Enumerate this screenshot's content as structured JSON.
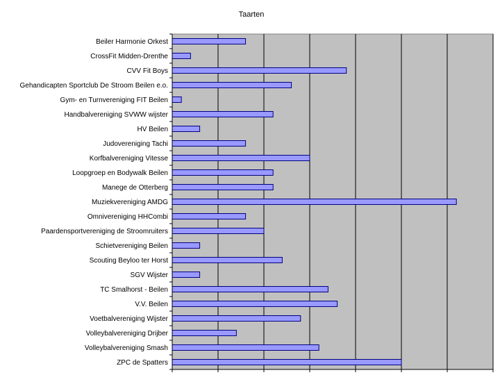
{
  "chart_data": {
    "type": "bar",
    "orientation": "horizontal",
    "title": "Taarten",
    "xlabel": "",
    "ylabel": "",
    "xlim": [
      0,
      35
    ],
    "x_tick_step": 5,
    "x_tick_labels_visible": false,
    "grid": "vertical",
    "legend": "none",
    "categories": [
      "Beiler Harmonie Orkest",
      "CrossFit Midden-Drenthe",
      "CVV Fit Boys",
      "Gehandicapten Sportclub De Stroom Beilen e.o.",
      "Gym- en Turnvereniging FIT Beilen",
      "Handbalvereniging SVWW wijster",
      "HV Beilen",
      "Judovereniging Tachi",
      "Korfbalvereniging Vitesse",
      "Loopgroep en Bodywalk Beilen",
      "Manege de Otterberg",
      "Muziekvereniging AMDG",
      "Omnivereniging HHCombi",
      "Paardensportvereniging de Stroomruiters",
      "Schietvereniging Beilen",
      "Scouting Beyloo ter Horst",
      "SGV Wijster",
      "TC Smalhorst - Beilen",
      "V.V. Beilen",
      "Voetbalvereniging Wijster",
      "Volleybalvereniging Drijber",
      "Volleybalvereniging Smash",
      "ZPC de Spatters"
    ],
    "values": [
      8,
      2,
      19,
      13,
      1,
      11,
      3,
      8,
      15,
      11,
      11,
      31,
      8,
      10,
      3,
      12,
      3,
      17,
      18,
      14,
      7,
      16,
      25
    ],
    "colors": {
      "bar_fill": "#9999ff",
      "bar_stroke": "#000080",
      "plot_background": "#c0c0c0",
      "gridline": "#000000"
    }
  }
}
